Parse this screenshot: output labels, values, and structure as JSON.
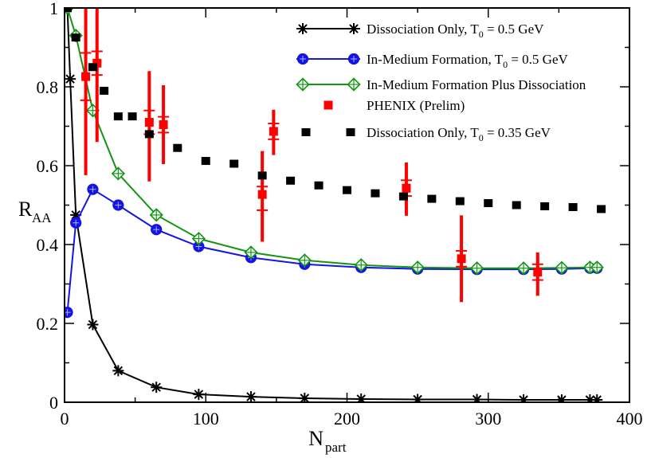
{
  "chart_data": {
    "type": "line",
    "title": "",
    "xlabel": "N",
    "xlabel_sub": "part",
    "ylabel": "R",
    "ylabel_sub": "AA",
    "xlim": [
      0,
      400
    ],
    "ylim": [
      0,
      1
    ],
    "xticks": [
      0,
      100,
      200,
      300,
      400
    ],
    "xtick_labels": [
      "0",
      "100",
      "200",
      "300",
      "400"
    ],
    "yticks": [
      0,
      0.2,
      0.4,
      0.6,
      0.8,
      1
    ],
    "ytick_labels": [
      "0",
      "0.2",
      "0.4",
      "0.6",
      "0.8",
      "1"
    ],
    "grid": false,
    "legend_position": "top-right",
    "series": [
      {
        "name": "Dissociation Only, T0 = 0.5 GeV",
        "legend_main": "Dissociation Only, T",
        "legend_sub": "0",
        "legend_tail": " = 0.5 GeV",
        "color": "#000000",
        "marker": "star",
        "line": "solid",
        "x": [
          2,
          4,
          8,
          20,
          38,
          65,
          95,
          132,
          170,
          210,
          250,
          292,
          325,
          352,
          372,
          377
        ],
        "y": [
          1.0,
          0.82,
          0.475,
          0.197,
          0.08,
          0.038,
          0.02,
          0.014,
          0.01,
          0.008,
          0.007,
          0.007,
          0.006,
          0.006,
          0.006,
          0.006
        ]
      },
      {
        "name": "In-Medium Formation, T0 = 0.5 GeV",
        "legend_main": "In-Medium Formation, T",
        "legend_sub": "0",
        "legend_tail": " = 0.5 GeV",
        "color": "#1414e6",
        "marker": "circle",
        "line": "solid",
        "x": [
          2,
          8,
          20,
          38,
          65,
          95,
          132,
          170,
          210,
          250,
          292,
          325,
          352,
          372,
          377
        ],
        "y": [
          0.228,
          0.455,
          0.54,
          0.5,
          0.438,
          0.395,
          0.367,
          0.35,
          0.342,
          0.338,
          0.337,
          0.337,
          0.338,
          0.34,
          0.34
        ]
      },
      {
        "name": "In-Medium Formation Plus Dissociation",
        "legend_main": "In-Medium Formation Plus Dissociation",
        "legend_sub": "",
        "legend_tail": "",
        "color": "#129612",
        "marker": "diamond",
        "line": "solid",
        "x": [
          2,
          8,
          20,
          38,
          65,
          95,
          132,
          170,
          210,
          250,
          292,
          325,
          352,
          372,
          377
        ],
        "y": [
          1.0,
          0.93,
          0.74,
          0.58,
          0.475,
          0.415,
          0.38,
          0.36,
          0.348,
          0.342,
          0.34,
          0.34,
          0.341,
          0.342,
          0.342
        ]
      },
      {
        "name": "PHENIX (Prelim)",
        "legend_main": "PHENIX (Prelim)",
        "legend_sub": "",
        "legend_tail": "",
        "color": "#ff0000",
        "marker": "square",
        "line": "none",
        "x": [
          15,
          23,
          60,
          70,
          140,
          148,
          242,
          281,
          335
        ],
        "y": [
          0.826,
          0.86,
          0.71,
          0.704,
          0.527,
          0.687,
          0.543,
          0.364,
          0.33
        ],
        "yerr_low": [
          0.25,
          0.2,
          0.15,
          0.1,
          0.12,
          0.06,
          0.07,
          0.11,
          0.06
        ],
        "yerr_high": [
          0.3,
          0.28,
          0.13,
          0.1,
          0.11,
          0.055,
          0.065,
          0.11,
          0.05
        ],
        "syst_low": [
          0.06,
          0.03,
          0.03,
          0.02,
          0.04,
          0.02,
          0.02,
          0.02,
          0.02
        ],
        "syst_high": [
          0.06,
          0.03,
          0.03,
          0.02,
          0.02,
          0.02,
          0.02,
          0.02,
          0.02
        ]
      },
      {
        "name": "Dissociation Only, T0 = 0.35 GeV",
        "legend_main": "Dissociation Only, T",
        "legend_sub": "0",
        "legend_tail": " = 0.35 GeV",
        "color": "#000000",
        "marker": "dot",
        "line": "dotted",
        "x": [
          2,
          8,
          20,
          28,
          38,
          48,
          60,
          80,
          100,
          120,
          140,
          160,
          180,
          200,
          220,
          240,
          260,
          280,
          300,
          320,
          340,
          360,
          380
        ],
        "y": [
          1.0,
          0.925,
          0.85,
          0.79,
          0.725,
          0.725,
          0.68,
          0.645,
          0.612,
          0.605,
          0.575,
          0.562,
          0.55,
          0.538,
          0.53,
          0.522,
          0.516,
          0.51,
          0.505,
          0.5,
          0.497,
          0.495,
          0.49
        ]
      }
    ]
  }
}
